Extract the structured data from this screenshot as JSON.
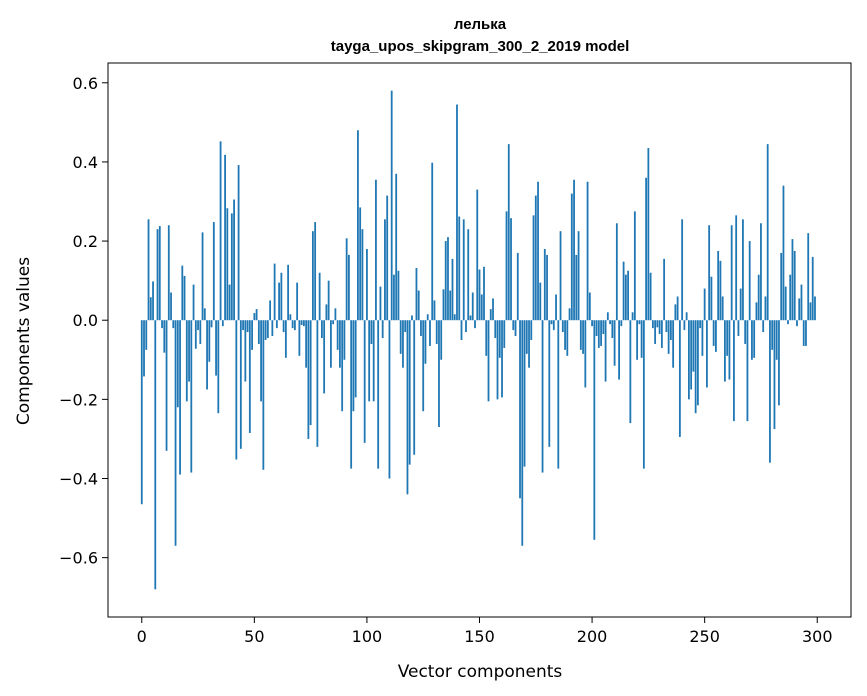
{
  "chart_data": {
    "type": "bar",
    "title_line1": "лелька",
    "title_line2": "tayga_upos_skipgram_300_2_2019 model",
    "xlabel": "Vector components",
    "ylabel": "Components values",
    "xlim": [
      -15,
      315
    ],
    "ylim": [
      -0.75,
      0.65
    ],
    "x_ticks": [
      0,
      50,
      100,
      150,
      200,
      250,
      300
    ],
    "x_tick_labels": [
      "0",
      "50",
      "100",
      "150",
      "200",
      "250",
      "300"
    ],
    "y_ticks": [
      -0.6,
      -0.4,
      -0.2,
      0.0,
      0.2,
      0.4,
      0.6
    ],
    "y_tick_labels": [
      "−0.6",
      "−0.4",
      "−0.2",
      "0.0",
      "0.2",
      "0.4",
      "0.6"
    ],
    "bar_color": "#1f77b4",
    "grid": false,
    "values": [
      -0.465,
      -0.142,
      -0.075,
      0.255,
      0.058,
      0.098,
      -0.68,
      0.23,
      0.238,
      -0.02,
      -0.082,
      -0.33,
      0.24,
      0.07,
      -0.02,
      -0.57,
      -0.22,
      -0.39,
      0.138,
      0.112,
      -0.205,
      -0.155,
      -0.385,
      0.09,
      -0.072,
      -0.025,
      -0.06,
      0.222,
      0.03,
      -0.175,
      -0.105,
      -0.018,
      0.248,
      -0.14,
      -0.235,
      0.452,
      -0.015,
      0.418,
      0.283,
      0.09,
      0.27,
      0.305,
      -0.352,
      0.392,
      -0.325,
      -0.025,
      -0.155,
      -0.03,
      -0.285,
      -0.075,
      0.018,
      0.028,
      -0.06,
      -0.205,
      -0.378,
      -0.05,
      -0.045,
      0.05,
      -0.04,
      0.143,
      -0.02,
      0.095,
      0.12,
      -0.03,
      -0.095,
      0.14,
      0.015,
      -0.02,
      -0.025,
      0.095,
      -0.09,
      -0.012,
      -0.015,
      -0.12,
      -0.3,
      -0.265,
      0.225,
      0.248,
      -0.32,
      0.12,
      -0.045,
      -0.185,
      0.04,
      0.1,
      -0.12,
      -0.01,
      0.03,
      -0.075,
      -0.12,
      -0.23,
      -0.1,
      0.207,
      0.165,
      -0.375,
      -0.23,
      -0.195,
      0.48,
      0.285,
      0.23,
      -0.31,
      0.18,
      -0.205,
      -0.06,
      -0.205,
      0.355,
      -0.375,
      0.085,
      -0.045,
      0.255,
      0.315,
      -0.4,
      0.58,
      0.115,
      0.37,
      0.125,
      -0.085,
      -0.12,
      -0.03,
      -0.44,
      -0.365,
      0.012,
      -0.34,
      0.132,
      0.075,
      -0.04,
      -0.23,
      -0.11,
      0.015,
      -0.065,
      0.398,
      0.05,
      -0.06,
      -0.27,
      -0.1,
      0.078,
      0.2,
      0.21,
      0.075,
      0.155,
      0.015,
      0.545,
      0.262,
      -0.05,
      0.255,
      -0.03,
      0.23,
      0.012,
      0.07,
      -0.02,
      0.33,
      0.128,
      0.065,
      0.135,
      -0.09,
      -0.205,
      0.028,
      0.055,
      -0.045,
      -0.2,
      -0.095,
      -0.195,
      -0.07,
      0.275,
      0.445,
      0.258,
      -0.025,
      -0.04,
      0.17,
      -0.45,
      -0.57,
      -0.37,
      -0.085,
      -0.12,
      -0.05,
      0.265,
      0.315,
      0.35,
      0.095,
      -0.385,
      0.18,
      0.165,
      -0.32,
      -0.01,
      -0.025,
      0.065,
      -0.375,
      0.225,
      -0.03,
      -0.075,
      -0.09,
      0.03,
      0.32,
      0.355,
      0.165,
      0.225,
      -0.075,
      -0.085,
      -0.17,
      0.35,
      0.07,
      -0.015,
      -0.555,
      -0.04,
      -0.07,
      -0.065,
      -0.035,
      -0.155,
      0.02,
      -0.01,
      -0.045,
      -0.115,
      0.245,
      -0.15,
      -0.015,
      0.148,
      0.115,
      0.125,
      -0.26,
      0.02,
      0.275,
      -0.1,
      -0.01,
      -0.095,
      -0.375,
      0.36,
      0.435,
      0.12,
      -0.02,
      -0.06,
      -0.018,
      -0.035,
      -0.07,
      0.155,
      -0.03,
      -0.085,
      -0.05,
      -0.12,
      0.04,
      0.06,
      -0.295,
      0.255,
      -0.025,
      0.02,
      -0.2,
      -0.175,
      -0.13,
      -0.235,
      -0.215,
      -0.02,
      -0.09,
      0.08,
      -0.17,
      0.24,
      0.11,
      -0.065,
      -0.08,
      0.175,
      0.15,
      0.06,
      -0.155,
      -0.09,
      -0.15,
      0.24,
      -0.255,
      0.265,
      -0.04,
      0.08,
      0.255,
      -0.06,
      -0.255,
      0.2,
      -0.1,
      -0.095,
      0.045,
      0.115,
      0.245,
      -0.03,
      0.06,
      0.445,
      -0.36,
      -0.075,
      -0.275,
      -0.1,
      -0.215,
      0.17,
      0.34,
      0.085,
      -0.01,
      0.115,
      0.205,
      0.175,
      -0.015,
      0.055,
      0.09,
      -0.065,
      -0.065,
      0.22,
      0.045,
      0.16,
      0.06
    ]
  }
}
